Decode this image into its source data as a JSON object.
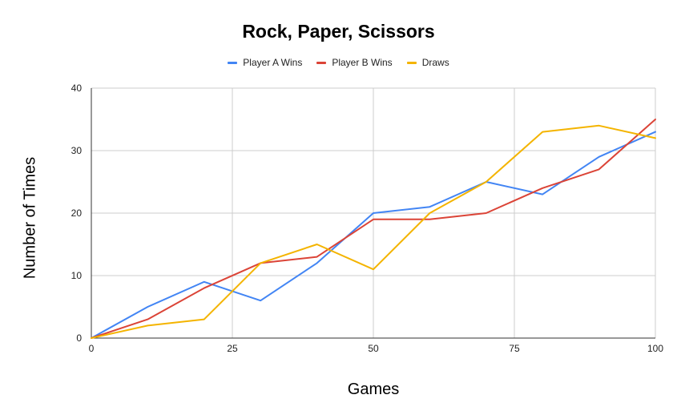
{
  "chart_data": {
    "type": "line",
    "title": "Rock, Paper, Scissors",
    "xlabel": "Games",
    "ylabel": "Number of Times",
    "xlim": [
      0,
      100
    ],
    "ylim": [
      0,
      40
    ],
    "x_ticks": [
      0,
      25,
      50,
      75,
      100
    ],
    "y_ticks": [
      0,
      10,
      20,
      30,
      40
    ],
    "grid": true,
    "legend_position": "top",
    "x": [
      0,
      10,
      20,
      30,
      40,
      50,
      60,
      70,
      80,
      90,
      100
    ],
    "series": [
      {
        "name": "Player A Wins",
        "color": "#4285f4",
        "values": [
          0,
          5,
          9,
          6,
          12,
          20,
          21,
          25,
          23,
          29,
          33
        ]
      },
      {
        "name": "Player B Wins",
        "color": "#db4437",
        "values": [
          0,
          3,
          8,
          12,
          13,
          19,
          19,
          20,
          24,
          27,
          35
        ]
      },
      {
        "name": "Draws",
        "color": "#f4b400",
        "values": [
          0,
          2,
          3,
          12,
          15,
          11,
          20,
          25,
          33,
          34,
          32
        ]
      }
    ]
  }
}
